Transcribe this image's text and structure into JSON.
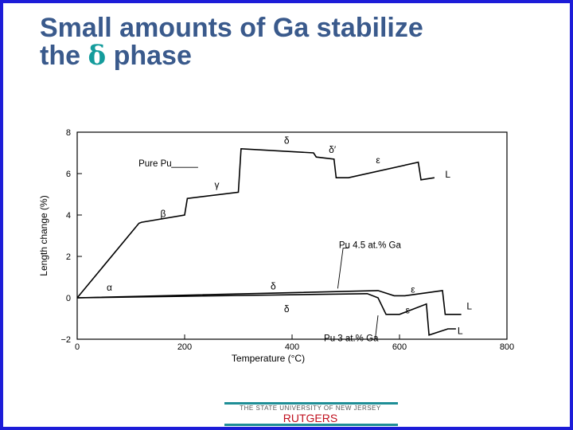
{
  "slide": {
    "title_line1": "Small amounts of Ga stabilize",
    "title_line2_pre": "the ",
    "title_line2_greek": "δ",
    "title_line2_post": " phase"
  },
  "footer": {
    "university": "THE STATE UNIVERSITY OF NEW JERSEY",
    "brand": "RUTGERS"
  },
  "colors": {
    "border": "#1c1cd8",
    "title": "#3a5a8c",
    "greek": "#149c9c",
    "footer_bar": "#1e8e96",
    "brand": "#c0101e"
  },
  "chart_data": {
    "type": "line",
    "xlabel": "Temperature (°C)",
    "ylabel": "Length change (%)",
    "xlim": [
      0,
      800
    ],
    "ylim": [
      -2,
      8
    ],
    "xticks": [
      0,
      200,
      400,
      600,
      800
    ],
    "yticks": [
      -2,
      0,
      2,
      4,
      6,
      8
    ],
    "grid": false,
    "series": [
      {
        "name": "Pure Pu",
        "points": [
          [
            0,
            0
          ],
          [
            115,
            3.6
          ],
          [
            120,
            3.65
          ],
          [
            200,
            4.0
          ],
          [
            205,
            4.8
          ],
          [
            300,
            5.1
          ],
          [
            305,
            7.2
          ],
          [
            440,
            7.0
          ],
          [
            445,
            6.8
          ],
          [
            478,
            6.7
          ],
          [
            482,
            5.8
          ],
          [
            505,
            5.8
          ],
          [
            635,
            6.55
          ],
          [
            640,
            5.7
          ],
          [
            665,
            5.8
          ]
        ]
      },
      {
        "name": "Pu 4.5 at.% Ga",
        "points": [
          [
            0,
            0
          ],
          [
            560,
            0.35
          ],
          [
            590,
            0.1
          ],
          [
            610,
            0.1
          ],
          [
            680,
            0.35
          ],
          [
            685,
            -0.8
          ],
          [
            715,
            -0.8
          ]
        ]
      },
      {
        "name": "Pu 3 at.% Ga",
        "points": [
          [
            0,
            0
          ],
          [
            540,
            0.2
          ],
          [
            560,
            0
          ],
          [
            575,
            -0.8
          ],
          [
            600,
            -0.8
          ],
          [
            650,
            -0.3
          ],
          [
            655,
            -1.8
          ],
          [
            690,
            -1.5
          ],
          [
            705,
            -1.5
          ]
        ]
      }
    ],
    "annotations": [
      {
        "text": "α",
        "x": 60,
        "y": 0.35
      },
      {
        "text": "β",
        "x": 160,
        "y": 3.9
      },
      {
        "text": "γ",
        "x": 260,
        "y": 5.3
      },
      {
        "text": "δ",
        "x": 390,
        "y": 7.45
      },
      {
        "text": "δ′",
        "x": 475,
        "y": 7.0
      },
      {
        "text": "ε",
        "x": 560,
        "y": 6.5
      },
      {
        "text": "L",
        "x": 690,
        "y": 5.8
      },
      {
        "text": "δ",
        "x": 365,
        "y": 0.4
      },
      {
        "text": "δ",
        "x": 390,
        "y": -0.7
      },
      {
        "text": "ε",
        "x": 625,
        "y": 0.25
      },
      {
        "text": "ε",
        "x": 615,
        "y": -0.75
      },
      {
        "text": "L",
        "x": 730,
        "y": -0.55
      },
      {
        "text": "L",
        "x": 713,
        "y": -1.75
      },
      {
        "text": "Pure Pu",
        "x": 145,
        "y": 6.35
      },
      {
        "text": "Pu 4.5 at.% Ga",
        "x": 545,
        "y": 2.4
      },
      {
        "text": "Pu 3 at.% Ga",
        "x": 510,
        "y": -2.1
      }
    ]
  }
}
